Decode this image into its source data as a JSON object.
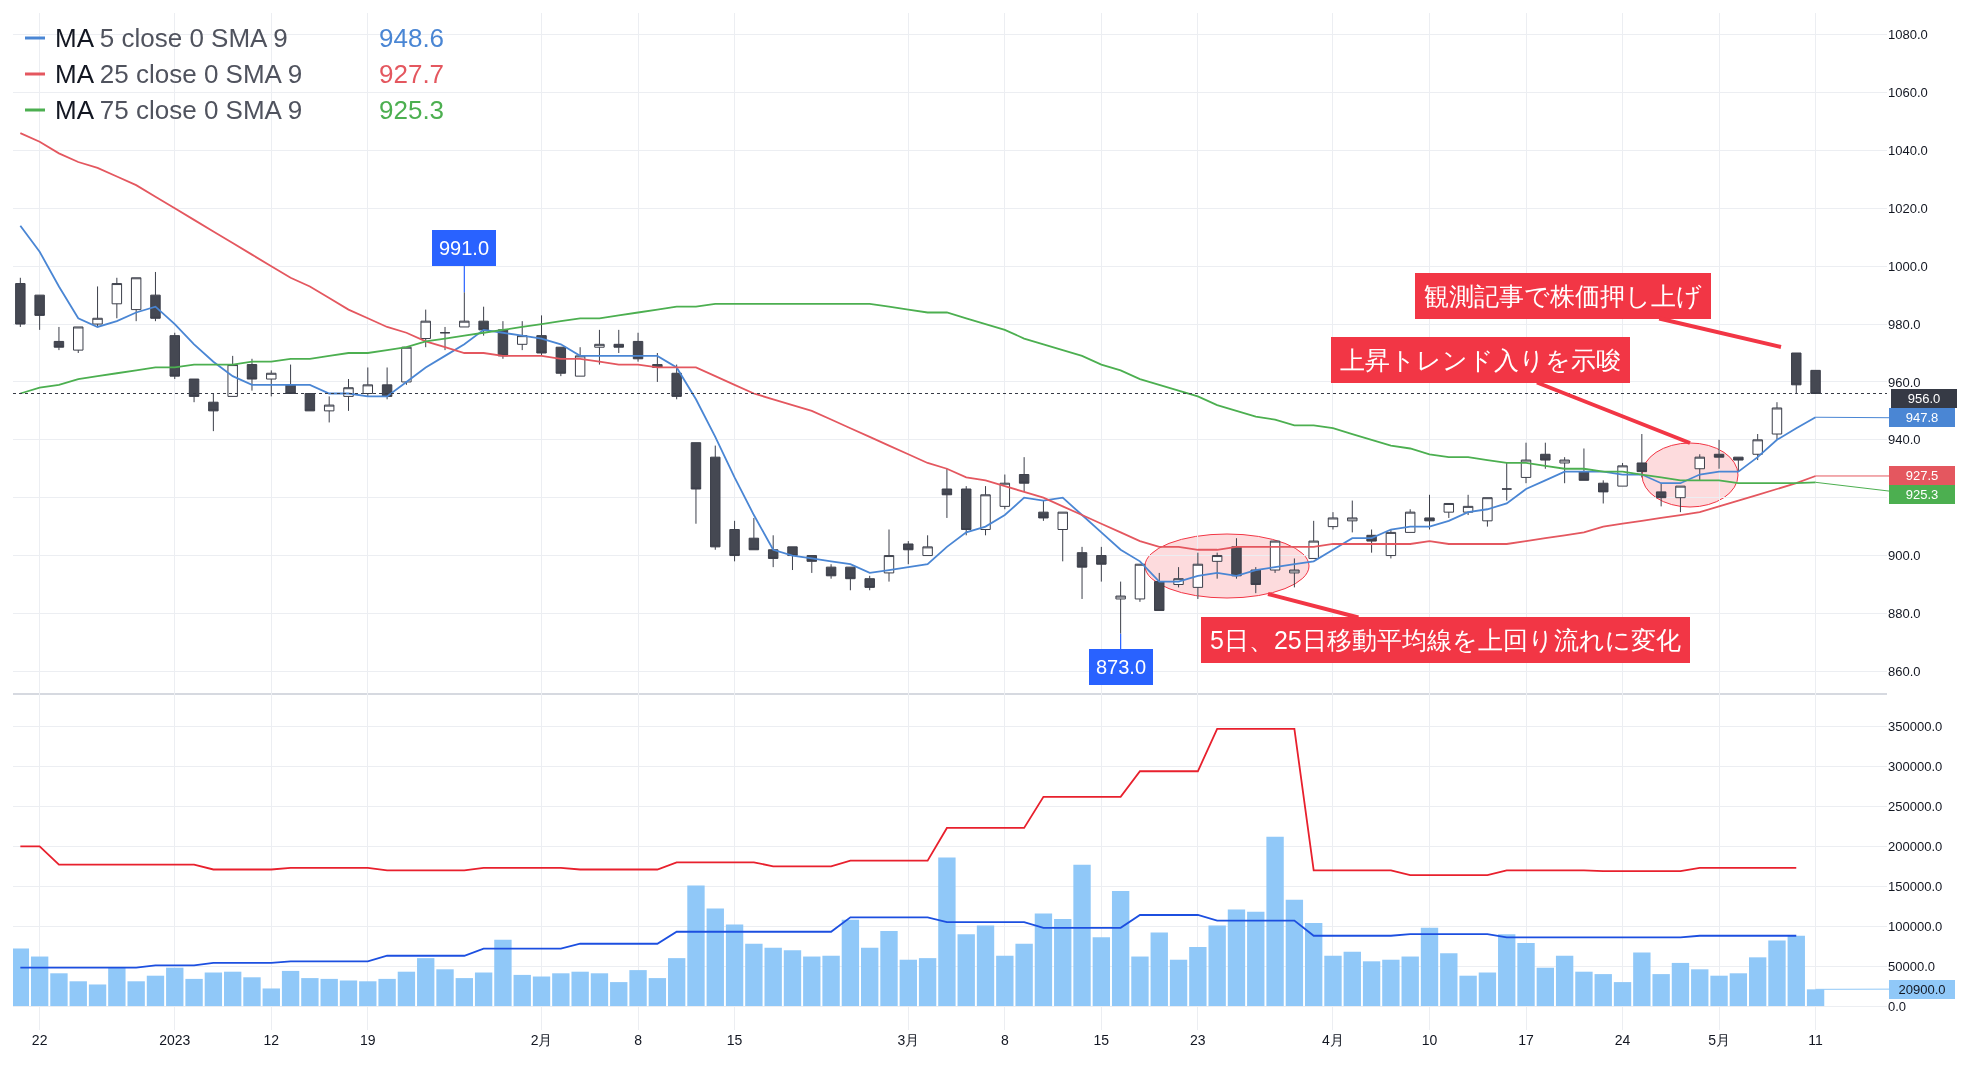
{
  "chart_data": [
    {
      "type": "candlestick",
      "legend": "top left",
      "grid": true,
      "tick_labels": "y",
      "categories": [
        null,
        "22",
        null,
        null,
        null,
        null,
        null,
        null,
        "2023",
        null,
        null,
        null,
        null,
        "12",
        null,
        null,
        null,
        null,
        "19",
        null,
        null,
        null,
        null,
        null,
        null,
        null,
        null,
        "2月",
        null,
        null,
        null,
        null,
        "8",
        null,
        null,
        null,
        null,
        "15",
        null,
        null,
        null,
        null,
        null,
        null,
        null,
        null,
        "3月",
        null,
        null,
        null,
        null,
        "8",
        null,
        null,
        null,
        null,
        "15",
        null,
        null,
        null,
        null,
        "23",
        null,
        null,
        null,
        null,
        null,
        null,
        "4月",
        null,
        null,
        null,
        null,
        "10",
        null,
        null,
        null,
        null,
        "17",
        null,
        null,
        null,
        null,
        "24",
        null,
        null,
        null,
        null,
        "5月",
        null,
        null,
        null,
        null,
        "11"
      ],
      "ohlc": [
        [
          994,
          996,
          979,
          980
        ],
        [
          990,
          990,
          978,
          983
        ],
        [
          974,
          979,
          971,
          972
        ],
        [
          971,
          979,
          970,
          979
        ],
        [
          980,
          993,
          979,
          982
        ],
        [
          987,
          996,
          982,
          994
        ],
        [
          985,
          996,
          981,
          996
        ],
        [
          990,
          998,
          981,
          982
        ],
        [
          976,
          977,
          961,
          962
        ],
        [
          961,
          961,
          953,
          955
        ],
        [
          953,
          956,
          943,
          950
        ],
        [
          955,
          969,
          955,
          966
        ],
        [
          966,
          968,
          957,
          961
        ],
        [
          961,
          964,
          955,
          963
        ],
        [
          959,
          966,
          956,
          956
        ],
        [
          956,
          956,
          950,
          950
        ],
        [
          950,
          955,
          946,
          952
        ],
        [
          955,
          961,
          950,
          958
        ],
        [
          956,
          965,
          955,
          959
        ],
        [
          959,
          965,
          954,
          955
        ],
        [
          960,
          972,
          959,
          972
        ],
        [
          975,
          985,
          972,
          981
        ],
        [
          977,
          979,
          971,
          977
        ],
        [
          979,
          991,
          979,
          981
        ],
        [
          981,
          986,
          976,
          978
        ],
        [
          978,
          981,
          968,
          969
        ],
        [
          973,
          981,
          971,
          976
        ],
        [
          976,
          983,
          969,
          970
        ],
        [
          972,
          972,
          962,
          963
        ],
        [
          962,
          972,
          962,
          969
        ],
        [
          972,
          978,
          966,
          973
        ],
        [
          973,
          978,
          970,
          972
        ],
        [
          974,
          977,
          967,
          968
        ],
        [
          966,
          970,
          960,
          965
        ],
        [
          963,
          966,
          954,
          955
        ],
        [
          939,
          939,
          911,
          923
        ],
        [
          934,
          938,
          902,
          903
        ],
        [
          909,
          912,
          898,
          900
        ],
        [
          906,
          913,
          902,
          902
        ],
        [
          902,
          907,
          896,
          899
        ],
        [
          903,
          903,
          895,
          900
        ],
        [
          900,
          900,
          894,
          898
        ],
        [
          896,
          897,
          892,
          893
        ],
        [
          896,
          896,
          888,
          892
        ],
        [
          892,
          893,
          888,
          889
        ],
        [
          894,
          909,
          891,
          900
        ],
        [
          904,
          905,
          897,
          902
        ],
        [
          900,
          907,
          900,
          903
        ],
        [
          923,
          930,
          913,
          921
        ],
        [
          923,
          924,
          907,
          909
        ],
        [
          909,
          924,
          907,
          921
        ],
        [
          917,
          928,
          916,
          925
        ],
        [
          928,
          934,
          922,
          925
        ],
        [
          915,
          919,
          912,
          913
        ],
        [
          909,
          915,
          898,
          915
        ],
        [
          901,
          903,
          885,
          896
        ],
        [
          900,
          903,
          891,
          897
        ],
        [
          885,
          891,
          873,
          886
        ],
        [
          885,
          897,
          884,
          897
        ],
        [
          891,
          894,
          881,
          881
        ],
        [
          890,
          896,
          889,
          892
        ],
        [
          889,
          901,
          885,
          897
        ],
        [
          898,
          901,
          892,
          900
        ],
        [
          903,
          906,
          892,
          893
        ],
        [
          895,
          896,
          887,
          890
        ],
        [
          895,
          905,
          894,
          905
        ],
        [
          894,
          899,
          889,
          895
        ],
        [
          899,
          912,
          899,
          905
        ],
        [
          910,
          915,
          909,
          913
        ],
        [
          912,
          919,
          908,
          913
        ],
        [
          907,
          909,
          901,
          905
        ],
        [
          900,
          909,
          899,
          908
        ],
        [
          908,
          916,
          908,
          915
        ],
        [
          913,
          921,
          909,
          912
        ],
        [
          915,
          918,
          913,
          918
        ],
        [
          915,
          921,
          914,
          917
        ],
        [
          912,
          920,
          910,
          920
        ],
        [
          923,
          932,
          919,
          923
        ],
        [
          927,
          939,
          925,
          933
        ],
        [
          935,
          939,
          930,
          933
        ],
        [
          932,
          934,
          925,
          933
        ],
        [
          929,
          937,
          926,
          926
        ],
        [
          925,
          926,
          918,
          922
        ],
        [
          924,
          932,
          924,
          931
        ],
        [
          932,
          942,
          927,
          929
        ],
        [
          922,
          925,
          917,
          920
        ],
        [
          920,
          924,
          915,
          924
        ],
        [
          930,
          935,
          926,
          934
        ],
        [
          935,
          940,
          930,
          934
        ],
        [
          934,
          934,
          929,
          933
        ],
        [
          935,
          942,
          933,
          940
        ],
        [
          942,
          953,
          940,
          951
        ],
        [
          970,
          970,
          956,
          959
        ],
        [
          964,
          964,
          956,
          956
        ]
      ],
      "series": [
        {
          "type": "line",
          "name": "MA 5 close 0 SMA 9",
          "color": "#4a86d4",
          "values": [
            1014,
            1005,
            993,
            982,
            979,
            981,
            984,
            986,
            980,
            973,
            967,
            962,
            959,
            959,
            959,
            959,
            956,
            956,
            955,
            955,
            960,
            965,
            969,
            973,
            978,
            977,
            976,
            975,
            973,
            969,
            969,
            969,
            969,
            969,
            965,
            954,
            941,
            927,
            914,
            902,
            900,
            899,
            898,
            897,
            894,
            895,
            896,
            897,
            903,
            908,
            910,
            914,
            920,
            919,
            920,
            914,
            908,
            902,
            898,
            891,
            891,
            893,
            894,
            893,
            895,
            896,
            897,
            898,
            902,
            906,
            906,
            909,
            910,
            910,
            912,
            915,
            916,
            918,
            923,
            926,
            929,
            929,
            929,
            928,
            928,
            925,
            925,
            928,
            929,
            929,
            934,
            940,
            944,
            947.8
          ]
        },
        {
          "type": "line",
          "name": "MA 25 close 0 SMA 9",
          "color": "#e4575f",
          "values": [
            1046,
            1043,
            1039,
            1036,
            1034,
            1031,
            1028,
            1024,
            1020,
            1016,
            1012,
            1008,
            1004,
            1000,
            996,
            993,
            989,
            985,
            982,
            979,
            977,
            974,
            972,
            970,
            970,
            969,
            969,
            969,
            968,
            968,
            967,
            966,
            966,
            965,
            965,
            965,
            962,
            959,
            956,
            954,
            952,
            950,
            947,
            944,
            941,
            938,
            935,
            932,
            930,
            927,
            926,
            924,
            922,
            920,
            917,
            914,
            911,
            908,
            905,
            903,
            903,
            902,
            902,
            903,
            903,
            903,
            903,
            903,
            904,
            904,
            904,
            904,
            904,
            905,
            904,
            904,
            904,
            904,
            905,
            906,
            907,
            908,
            910,
            911,
            912,
            913,
            914,
            915,
            917,
            919,
            921,
            923,
            925,
            927.5
          ]
        },
        {
          "type": "line",
          "name": "MA 75 close 0 SMA 9",
          "color": "#4caf50",
          "values": [
            956,
            958,
            959,
            961,
            962,
            963,
            964,
            965,
            965,
            966,
            966,
            966,
            967,
            967,
            968,
            968,
            969,
            970,
            970,
            971,
            972,
            974,
            975,
            976,
            977,
            978,
            979,
            980,
            981,
            982,
            982,
            983,
            984,
            985,
            986,
            986,
            987,
            987,
            987,
            987,
            987,
            987,
            987,
            987,
            987,
            986,
            985,
            984,
            984,
            982,
            980,
            978,
            975,
            973,
            971,
            969,
            966,
            964,
            961,
            959,
            957,
            955,
            952,
            950,
            948,
            947,
            945,
            945,
            944,
            942,
            940,
            938,
            937,
            935,
            934,
            934,
            933,
            932,
            932,
            931,
            930,
            930,
            929,
            929,
            928,
            927,
            926,
            926,
            926,
            925,
            925,
            925,
            925,
            925.3
          ]
        }
      ],
      "ylim": [
        852.5,
        1087.5
      ],
      "yticks": [
        {
          "value": 860,
          "label": "860.0"
        },
        {
          "value": 880,
          "label": "880.0"
        },
        {
          "value": 900,
          "label": "900.0"
        },
        {
          "value": 920,
          "label": null
        },
        {
          "value": 940,
          "label": "940.0"
        },
        {
          "value": 960,
          "label": "960.0"
        },
        {
          "value": 980,
          "label": "980.0"
        },
        {
          "value": 1000,
          "label": "1000.0"
        },
        {
          "value": 1020,
          "label": "1020.0"
        },
        {
          "value": 1040,
          "label": "1040.0"
        },
        {
          "value": 1060,
          "label": "1060.0"
        },
        {
          "value": 1080,
          "label": "1080.0"
        }
      ],
      "ref_lines": [
        {
          "axis": "y",
          "value": 956,
          "label": "956.0",
          "color": "#363a45",
          "line_style": "dotted"
        }
      ],
      "annotations": [
        {
          "text": "991.0",
          "y": 991
        },
        {
          "text": "873.0",
          "y": 873
        },
        "948.6",
        "927.7",
        "925.3",
        "観測記事で株価押し上げ",
        "上昇トレンド入りを示唆",
        "5日、25日移動平均線を上回り流れに変化",
        {
          "text": "947.8",
          "x": "11",
          "y": 947.8
        },
        {
          "text": "927.5",
          "x": "11",
          "y": 927.5
        },
        {
          "text": "925.3",
          "x": "11",
          "y": 925.3
        }
      ]
    },
    {
      "type": "bar",
      "grid": true,
      "categories": [
        null,
        "22",
        null,
        null,
        null,
        null,
        null,
        null,
        "2023",
        null,
        null,
        null,
        null,
        "12",
        null,
        null,
        null,
        null,
        "19",
        null,
        null,
        null,
        null,
        null,
        null,
        null,
        null,
        "2月",
        null,
        null,
        null,
        null,
        "8",
        null,
        null,
        null,
        null,
        "15",
        null,
        null,
        null,
        null,
        null,
        null,
        null,
        null,
        "3月",
        null,
        null,
        null,
        null,
        "8",
        null,
        null,
        null,
        null,
        "15",
        null,
        null,
        null,
        null,
        "23",
        null,
        null,
        null,
        null,
        null,
        null,
        "4月",
        null,
        null,
        null,
        null,
        "10",
        null,
        null,
        null,
        null,
        "17",
        null,
        null,
        null,
        null,
        "24",
        null,
        null,
        null,
        null,
        "5月",
        null,
        null,
        null,
        null,
        "11"
      ],
      "series": [
        {
          "type": "bar",
          "color": "#90c8f8",
          "values": [
            72000,
            62000,
            41000,
            31000,
            27000,
            48000,
            31000,
            38000,
            48000,
            34000,
            42000,
            43000,
            36000,
            22000,
            44000,
            35000,
            34000,
            32000,
            31000,
            34000,
            43000,
            60000,
            46000,
            35000,
            42000,
            83000,
            39000,
            37000,
            41000,
            43000,
            41000,
            30000,
            45000,
            35000,
            60000,
            151000,
            122000,
            102000,
            78000,
            73000,
            70000,
            62000,
            63000,
            108000,
            73000,
            94000,
            58000,
            60000,
            186000,
            90000,
            101000,
            63000,
            78000,
            116000,
            109000,
            177000,
            86000,
            144000,
            62000,
            92000,
            58000,
            74000,
            101000,
            121000,
            118000,
            212000,
            133000,
            104000,
            63000,
            68000,
            56000,
            58000,
            62000,
            98000,
            66000,
            38000,
            42000,
            90000,
            79000,
            48000,
            63000,
            43000,
            40000,
            30000,
            67000,
            40000,
            54000,
            46000,
            38000,
            41000,
            61000,
            82000,
            88000,
            20900
          ]
        },
        {
          "type": "line",
          "color": "#e8202d",
          "values": [
            200000,
            200000,
            177000,
            177000,
            177000,
            177000,
            177000,
            177000,
            177000,
            177000,
            171000,
            171000,
            171000,
            171000,
            173000,
            173000,
            173000,
            173000,
            173000,
            170000,
            170000,
            170000,
            170000,
            170000,
            173000,
            173000,
            173000,
            173000,
            173000,
            171000,
            171000,
            171000,
            171000,
            171000,
            180000,
            180000,
            180000,
            180000,
            180000,
            175000,
            175000,
            175000,
            175000,
            182000,
            182000,
            182000,
            182000,
            182000,
            223000,
            223000,
            223000,
            223000,
            223000,
            262000,
            262000,
            262000,
            262000,
            262000,
            294000,
            294000,
            294000,
            294000,
            347000,
            347000,
            347000,
            347000,
            347000,
            170000,
            170000,
            170000,
            170000,
            170000,
            164000,
            164000,
            164000,
            164000,
            164000,
            170000,
            170000,
            170000,
            170000,
            170000,
            169000,
            169000,
            169000,
            169000,
            169000,
            173000,
            173000,
            173000,
            173000,
            173000,
            173000,
            null
          ]
        },
        {
          "type": "line",
          "color": "#1c4fe0",
          "values": [
            48000,
            48000,
            48000,
            48000,
            48000,
            48000,
            48000,
            51000,
            51000,
            51000,
            54000,
            54000,
            54000,
            54000,
            56000,
            56000,
            56000,
            56000,
            56000,
            63000,
            63000,
            63000,
            63000,
            63000,
            72000,
            72000,
            72000,
            72000,
            72000,
            78000,
            78000,
            78000,
            78000,
            78000,
            93000,
            93000,
            93000,
            93000,
            93000,
            93000,
            93000,
            93000,
            93000,
            111000,
            111000,
            111000,
            111000,
            111000,
            105000,
            105000,
            105000,
            105000,
            105000,
            98000,
            98000,
            98000,
            98000,
            98000,
            114000,
            114000,
            114000,
            114000,
            107000,
            107000,
            107000,
            107000,
            107000,
            88000,
            88000,
            88000,
            88000,
            88000,
            90000,
            90000,
            90000,
            90000,
            90000,
            86000,
            86000,
            86000,
            86000,
            86000,
            86000,
            86000,
            86000,
            86000,
            86000,
            88000,
            88000,
            88000,
            88000,
            88000,
            88000,
            null
          ]
        }
      ],
      "ylim": [
        -30000,
        392000
      ],
      "yticks": [
        {
          "value": 0,
          "label": "0.0"
        },
        {
          "value": 50000,
          "label": "50000.0"
        },
        {
          "value": 100000,
          "label": "100000.0"
        },
        {
          "value": 150000,
          "label": "150000.0"
        },
        {
          "value": 200000,
          "label": "200000.0"
        },
        {
          "value": 250000,
          "label": "250000.0"
        },
        {
          "value": 300000,
          "label": "300000.0"
        },
        {
          "value": 350000,
          "label": "350000.0"
        }
      ],
      "annotations": [
        {
          "text": "20900.0",
          "x": "11",
          "y": 20900
        }
      ]
    }
  ]
}
